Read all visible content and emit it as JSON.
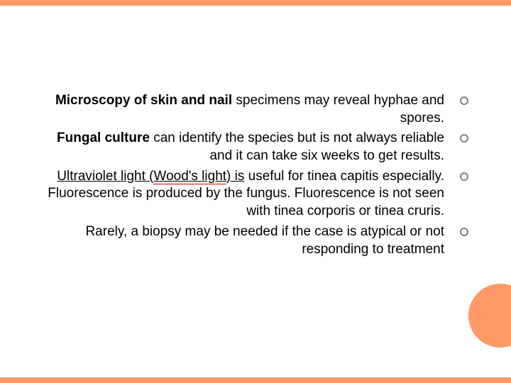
{
  "slide": {
    "border_color": "#ff9966",
    "circle_color": "#ff9966",
    "background_color": "#ffffff",
    "text_color": "#000000",
    "bullet_ring_color": "#808080",
    "spellcheck_underline_color": "#cc0000",
    "font_size": 19,
    "bullets": [
      {
        "bold_part": "Microscopy of skin and nail",
        "rest": " specimens may reveal hyphae and spores."
      },
      {
        "bold_part": "Fungal culture",
        "rest": " can identify the species but is not always reliable and it can take six weeks to get results."
      },
      {
        "underline_part": "Ultraviolet light (",
        "spellcheck_part": "Wood's light",
        "underline_close": ") is",
        "rest": " useful for tinea capitis especially. Fluorescence is produced by the fungus. Fluorescence is not seen with tinea corporis or tinea cruris."
      },
      {
        "plain": "Rarely, a biopsy may be needed if the case is atypical or not responding to treatment"
      }
    ]
  }
}
